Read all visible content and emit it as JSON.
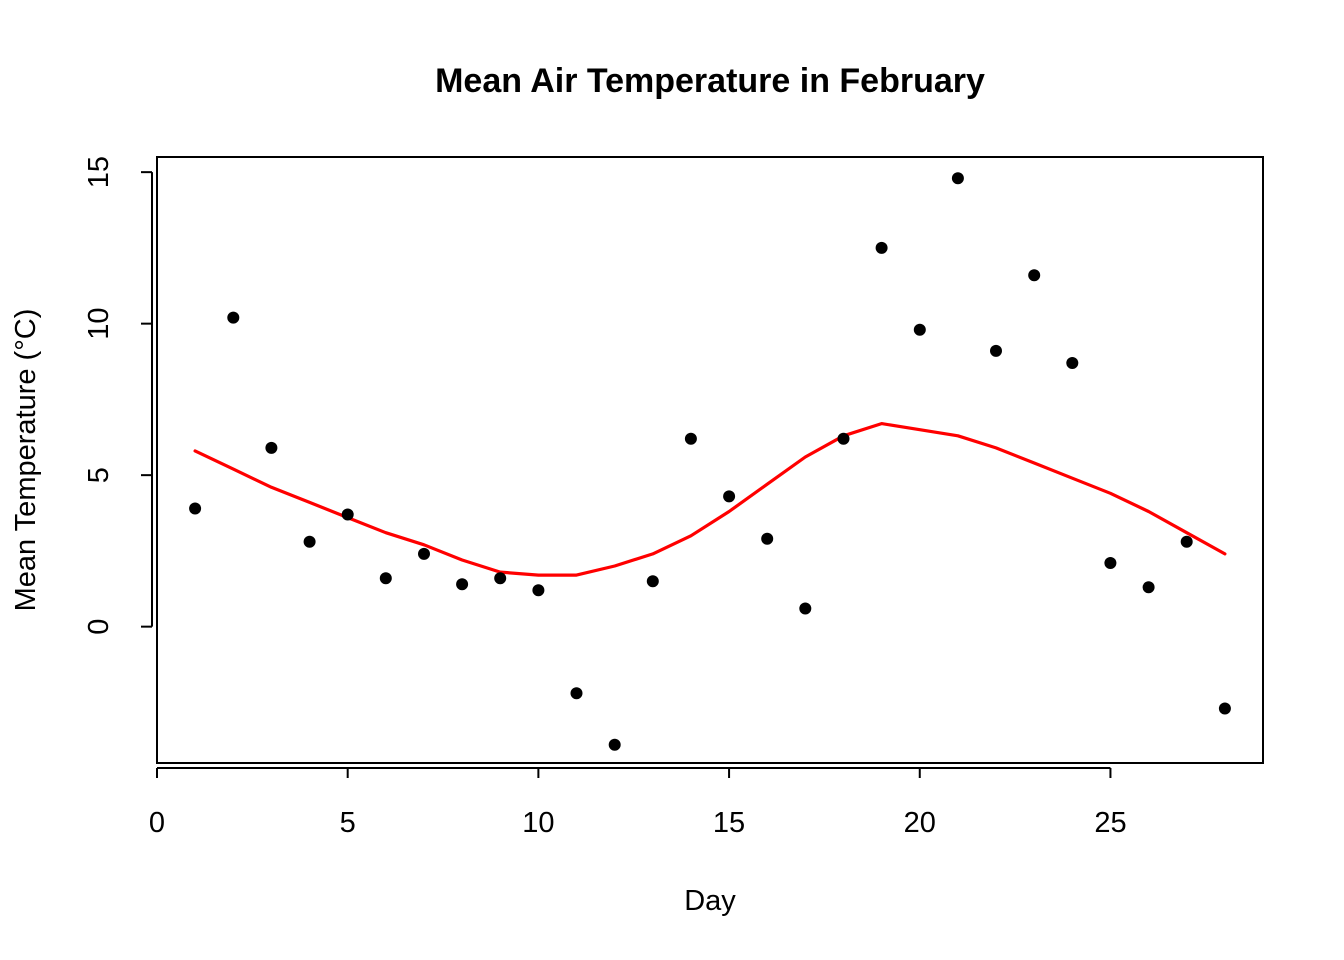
{
  "chart_data": {
    "type": "scatter",
    "title": "Mean Air Temperature in February",
    "xlabel": "Day",
    "ylabel": "Mean Temperature (°C)",
    "xlim": [
      0,
      29
    ],
    "ylim": [
      -4.5,
      15.5
    ],
    "x_ticks": [
      0,
      5,
      10,
      15,
      20,
      25
    ],
    "y_ticks": [
      0,
      5,
      10,
      15
    ],
    "grid": false,
    "series": [
      {
        "kind": "points",
        "color": "#000000",
        "x": [
          1,
          2,
          3,
          4,
          5,
          6,
          7,
          8,
          9,
          10,
          11,
          12,
          13,
          14,
          15,
          16,
          17,
          18,
          19,
          20,
          21,
          22,
          23,
          24,
          25,
          26,
          27,
          28
        ],
        "y": [
          3.9,
          10.2,
          5.9,
          2.8,
          3.7,
          1.6,
          2.4,
          1.4,
          1.6,
          1.2,
          -2.2,
          -3.9,
          1.5,
          6.2,
          4.3,
          2.9,
          0.6,
          6.2,
          12.5,
          9.8,
          14.8,
          9.1,
          11.6,
          8.7,
          2.1,
          1.3,
          2.8,
          -2.7
        ]
      },
      {
        "kind": "smooth-line",
        "color": "#ff0000",
        "x": [
          1,
          2,
          3,
          4,
          5,
          6,
          7,
          8,
          9,
          10,
          11,
          12,
          13,
          14,
          15,
          16,
          17,
          18,
          19,
          20,
          21,
          22,
          23,
          24,
          25,
          26,
          27,
          28
        ],
        "y": [
          5.8,
          5.2,
          4.6,
          4.1,
          3.6,
          3.1,
          2.7,
          2.2,
          1.8,
          1.7,
          1.7,
          2.0,
          2.4,
          3.0,
          3.8,
          4.7,
          5.6,
          6.3,
          6.7,
          6.5,
          6.3,
          5.9,
          5.4,
          4.9,
          4.4,
          3.8,
          3.1,
          2.4
        ]
      }
    ]
  }
}
